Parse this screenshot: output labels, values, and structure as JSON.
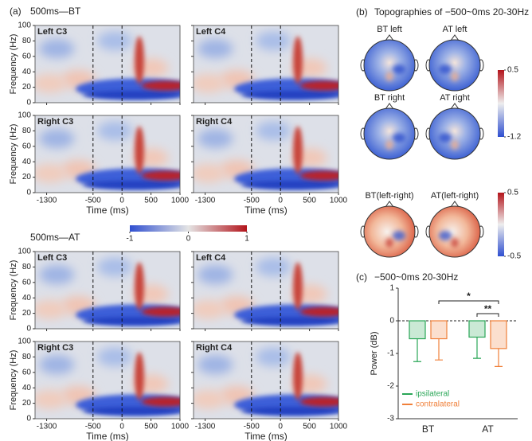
{
  "chart_data": [
    {
      "type": "heatmap_grid",
      "panel_label": "(a)",
      "title": "500ms—BT",
      "panels": [
        "Left C3",
        "Left C4",
        "Right C3",
        "Right C4"
      ],
      "xlabel": "Time (ms)",
      "ylabel": "Frequency (Hz)",
      "xlim": [
        -1500,
        1000
      ],
      "ylim": [
        0,
        100
      ],
      "xticks": [
        -1300,
        -500,
        0,
        500,
        1000
      ],
      "yticks": [
        0,
        20,
        40,
        60,
        80,
        100
      ],
      "event_lines": [
        -500,
        0
      ]
    },
    {
      "type": "colorbar",
      "clim": [
        -1,
        1
      ],
      "ticks": [
        -1,
        0,
        1
      ],
      "colors": [
        "#2f4fd0",
        "#e4e4e4",
        "#b3141b"
      ]
    },
    {
      "type": "heatmap_grid",
      "title": "500ms—AT",
      "panels": [
        "Left C3",
        "Left C4",
        "Right C3",
        "Right C4"
      ],
      "xlabel": "Time (ms)",
      "ylabel": "Frequency (Hz)",
      "xlim": [
        -1500,
        1000
      ],
      "ylim": [
        0,
        100
      ],
      "xticks": [
        -1300,
        -500,
        0,
        500,
        1000
      ],
      "yticks": [
        0,
        20,
        40,
        60,
        80,
        100
      ],
      "event_lines": [
        -500,
        0
      ]
    },
    {
      "type": "topography",
      "panel_label": "(b)",
      "title": "Topographies of −500~0ms  20-30Hz",
      "maps": [
        "BT left",
        "AT left",
        "BT right",
        "AT right",
        "BT(left-right)",
        "AT(left-right)"
      ],
      "colorbars": [
        {
          "clim": [
            -1.2,
            0.5
          ],
          "ticks": [
            0.5,
            -1.2
          ]
        },
        {
          "clim": [
            -0.5,
            0.5
          ],
          "ticks": [
            0.5,
            -0.5
          ]
        }
      ]
    },
    {
      "type": "bar",
      "panel_label": "(c)",
      "title": "−500~0ms  20-30Hz",
      "categories": [
        "BT",
        "AT"
      ],
      "ylabel": "Power (dB)",
      "ylim": [
        -3,
        1
      ],
      "yticks": [
        -3,
        -2,
        -1,
        0,
        1
      ],
      "series": [
        {
          "name": "ipsilateral",
          "color": "#2aa657",
          "values": [
            -0.55,
            -0.5
          ],
          "errors": [
            0.7,
            0.65
          ]
        },
        {
          "name": "contralateral",
          "color": "#f0803a",
          "values": [
            -0.55,
            -0.85
          ],
          "errors": [
            0.65,
            0.55
          ]
        }
      ],
      "annotations": [
        {
          "text": "*"
        },
        {
          "text": "**"
        }
      ]
    }
  ]
}
